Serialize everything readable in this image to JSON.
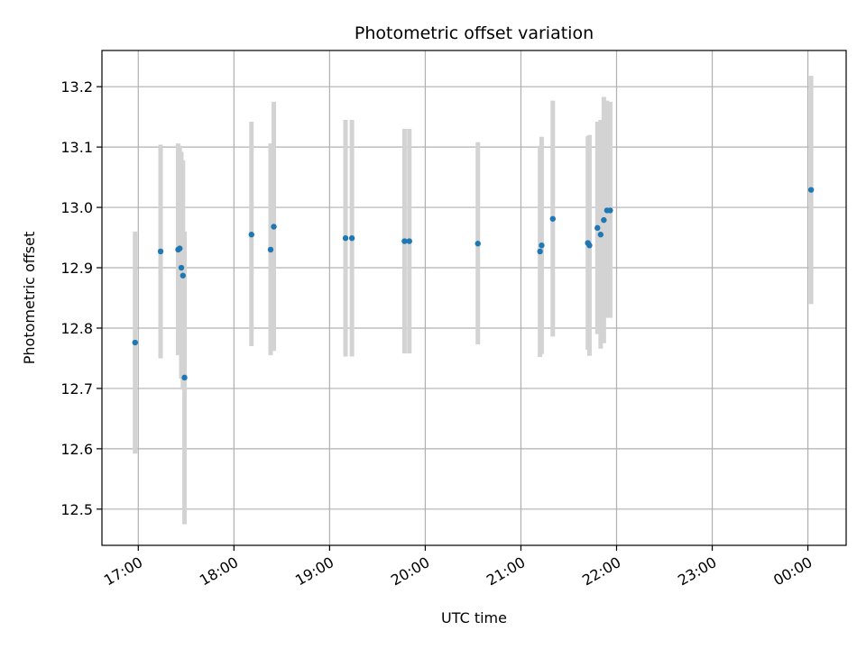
{
  "chart_data": {
    "type": "scatter",
    "title": "Photometric offset variation",
    "xlabel": "UTC time",
    "ylabel": "Photometric offset",
    "x_ticks": [
      "17:00",
      "18:00",
      "19:00",
      "20:00",
      "21:00",
      "22:00",
      "23:00",
      "00:00"
    ],
    "x_tick_hours": [
      17,
      18,
      19,
      20,
      21,
      22,
      23,
      24
    ],
    "xlim_hours": [
      16.62,
      24.4
    ],
    "y_ticks": [
      12.5,
      12.6,
      12.7,
      12.8,
      12.9,
      13.0,
      13.1,
      13.2
    ],
    "y_tick_labels": [
      "12.5",
      "12.6",
      "12.7",
      "12.8",
      "12.9",
      "13.0",
      "13.1",
      "13.2"
    ],
    "ylim": [
      12.44,
      13.26
    ],
    "grid": true,
    "point_color": "#1f77b4",
    "errorbar_color": "#d3d3d3",
    "points": [
      {
        "time": "16:58",
        "value": 12.776,
        "low": 12.592,
        "high": 12.96
      },
      {
        "time": "17:14",
        "value": 12.927,
        "low": 12.75,
        "high": 13.104
      },
      {
        "time": "17:25",
        "value": 12.93,
        "low": 12.755,
        "high": 13.106
      },
      {
        "time": "17:26",
        "value": 12.932,
        "low": 12.76,
        "high": 13.102
      },
      {
        "time": "17:27",
        "value": 12.9,
        "low": 12.716,
        "high": 13.092
      },
      {
        "time": "17:28",
        "value": 12.887,
        "low": 12.698,
        "high": 13.078
      },
      {
        "time": "17:29",
        "value": 12.718,
        "low": 12.475,
        "high": 12.96
      },
      {
        "time": "18:11",
        "value": 12.955,
        "low": 12.77,
        "high": 13.142
      },
      {
        "time": "18:23",
        "value": 12.93,
        "low": 12.755,
        "high": 13.106
      },
      {
        "time": "18:25",
        "value": 12.968,
        "low": 12.762,
        "high": 13.175
      },
      {
        "time": "19:10",
        "value": 12.949,
        "low": 12.753,
        "high": 13.145
      },
      {
        "time": "19:14",
        "value": 12.949,
        "low": 12.753,
        "high": 13.145
      },
      {
        "time": "19:47",
        "value": 12.944,
        "low": 12.758,
        "high": 13.13
      },
      {
        "time": "19:50",
        "value": 12.944,
        "low": 12.758,
        "high": 13.13
      },
      {
        "time": "20:33",
        "value": 12.94,
        "low": 12.773,
        "high": 13.108
      },
      {
        "time": "21:12",
        "value": 12.927,
        "low": 12.752,
        "high": 13.102
      },
      {
        "time": "21:13",
        "value": 12.937,
        "low": 12.757,
        "high": 13.117
      },
      {
        "time": "21:20",
        "value": 12.981,
        "low": 12.786,
        "high": 13.177
      },
      {
        "time": "21:42",
        "value": 12.941,
        "low": 12.764,
        "high": 13.118
      },
      {
        "time": "21:43",
        "value": 12.937,
        "low": 12.754,
        "high": 13.12
      },
      {
        "time": "21:48",
        "value": 12.966,
        "low": 12.79,
        "high": 13.142
      },
      {
        "time": "21:50",
        "value": 12.955,
        "low": 12.766,
        "high": 13.145
      },
      {
        "time": "21:52",
        "value": 12.979,
        "low": 12.775,
        "high": 13.183
      },
      {
        "time": "21:54",
        "value": 12.995,
        "low": 12.817,
        "high": 13.177
      },
      {
        "time": "21:56",
        "value": 12.995,
        "low": 12.817,
        "high": 13.175
      },
      {
        "time": "00:02",
        "value": 13.029,
        "low": 12.84,
        "high": 13.218
      }
    ]
  }
}
